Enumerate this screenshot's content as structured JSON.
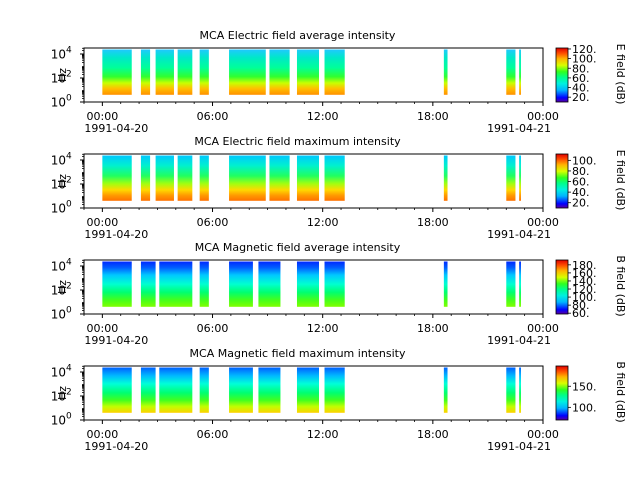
{
  "chart_data": [
    {
      "type": "heatmap",
      "title": "MCA  Electric field average intensity",
      "ylabel": "Hz",
      "yticks": [
        {
          "base": "10",
          "exp": "0"
        },
        {
          "base": "10",
          "exp": "2"
        },
        {
          "base": "10",
          "exp": "4"
        }
      ],
      "xticks": [
        "00:00",
        "06:00",
        "12:00",
        "18:00",
        "00:00"
      ],
      "xdate_left": "1991-04-20",
      "xdate_right": "1991-04-21",
      "xlim_hours": [
        -1,
        24
      ],
      "ylim_log10": [
        0,
        4.5
      ],
      "colorbar_label": "E field (dB)",
      "colorbar_ticks": [
        "20.",
        "40.",
        "60.",
        "80.",
        "100.",
        "120."
      ],
      "colorbar_tick_values": [
        20,
        40,
        60,
        80,
        100,
        120
      ],
      "colorbar_range": [
        10,
        122
      ],
      "profile": "e_avg",
      "segments": [
        [
          0.0,
          1.6
        ],
        [
          2.1,
          2.6
        ],
        [
          2.9,
          3.9
        ],
        [
          4.1,
          4.9
        ],
        [
          5.3,
          5.8
        ],
        [
          6.9,
          8.9
        ],
        [
          9.1,
          10.2
        ],
        [
          10.6,
          11.8
        ],
        [
          12.1,
          13.2
        ],
        [
          18.6,
          18.8
        ],
        [
          22.0,
          22.5
        ],
        [
          22.7,
          22.8
        ]
      ]
    },
    {
      "type": "heatmap",
      "title": "MCA  Electric field maximum intensity",
      "ylabel": "Hz",
      "yticks": [
        {
          "base": "10",
          "exp": "0"
        },
        {
          "base": "10",
          "exp": "2"
        },
        {
          "base": "10",
          "exp": "4"
        }
      ],
      "xticks": [
        "00:00",
        "06:00",
        "12:00",
        "18:00",
        "00:00"
      ],
      "xdate_left": "1991-04-20",
      "xdate_right": "1991-04-21",
      "xlim_hours": [
        -1,
        24
      ],
      "ylim_log10": [
        0,
        4.5
      ],
      "colorbar_label": "E field (dB)",
      "colorbar_ticks": [
        "20.",
        "40.",
        "60.",
        "80.",
        "100."
      ],
      "colorbar_tick_values": [
        20,
        40,
        60,
        80,
        100
      ],
      "colorbar_range": [
        10,
        112
      ],
      "profile": "e_max",
      "segments": [
        [
          0.0,
          1.6
        ],
        [
          2.1,
          2.6
        ],
        [
          2.9,
          3.9
        ],
        [
          4.1,
          4.9
        ],
        [
          5.3,
          5.8
        ],
        [
          6.9,
          8.9
        ],
        [
          9.1,
          10.2
        ],
        [
          10.6,
          11.8
        ],
        [
          12.1,
          13.2
        ],
        [
          18.6,
          18.8
        ],
        [
          22.0,
          22.5
        ],
        [
          22.7,
          22.8
        ]
      ]
    },
    {
      "type": "heatmap",
      "title": "MCA  Magnetic field average intensity",
      "ylabel": "Hz",
      "yticks": [
        {
          "base": "10",
          "exp": "0"
        },
        {
          "base": "10",
          "exp": "2"
        },
        {
          "base": "10",
          "exp": "4"
        }
      ],
      "xticks": [
        "00:00",
        "06:00",
        "12:00",
        "18:00",
        "00:00"
      ],
      "xdate_left": "1991-04-20",
      "xdate_right": "1991-04-21",
      "xlim_hours": [
        -1,
        24
      ],
      "ylim_log10": [
        0,
        4.5
      ],
      "colorbar_label": "B field (dB)",
      "colorbar_ticks": [
        "60.",
        "80.",
        "100.",
        "120.",
        "140.",
        "160.",
        "180."
      ],
      "colorbar_tick_values": [
        60,
        80,
        100,
        120,
        140,
        160,
        180
      ],
      "colorbar_range": [
        58,
        192
      ],
      "profile": "b_avg",
      "segments": [
        [
          0.0,
          1.6
        ],
        [
          2.1,
          2.9
        ],
        [
          3.1,
          4.9
        ],
        [
          5.3,
          5.8
        ],
        [
          6.9,
          8.2
        ],
        [
          8.5,
          9.7
        ],
        [
          10.6,
          11.8
        ],
        [
          12.1,
          13.2
        ],
        [
          18.6,
          18.8
        ],
        [
          22.0,
          22.5
        ],
        [
          22.7,
          22.8
        ]
      ]
    },
    {
      "type": "heatmap",
      "title": "MCA  Magnetic field maximum intensity",
      "ylabel": "Hz",
      "yticks": [
        {
          "base": "10",
          "exp": "0"
        },
        {
          "base": "10",
          "exp": "2"
        },
        {
          "base": "10",
          "exp": "4"
        }
      ],
      "xticks": [
        "00:00",
        "06:00",
        "12:00",
        "18:00",
        "00:00"
      ],
      "xdate_left": "1991-04-20",
      "xdate_right": "1991-04-21",
      "xlim_hours": [
        -1,
        24
      ],
      "ylim_log10": [
        0,
        4.5
      ],
      "colorbar_label": "B field (dB)",
      "colorbar_ticks": [
        "100.",
        "150."
      ],
      "colorbar_tick_values": [
        100,
        150
      ],
      "colorbar_range": [
        70,
        198
      ],
      "profile": "b_max",
      "segments": [
        [
          0.0,
          1.6
        ],
        [
          2.1,
          2.9
        ],
        [
          3.1,
          4.9
        ],
        [
          5.3,
          5.8
        ],
        [
          6.9,
          8.2
        ],
        [
          8.5,
          9.7
        ],
        [
          10.6,
          11.8
        ],
        [
          12.1,
          13.2
        ],
        [
          18.6,
          18.8
        ],
        [
          22.0,
          22.5
        ],
        [
          22.7,
          22.8
        ]
      ]
    }
  ]
}
